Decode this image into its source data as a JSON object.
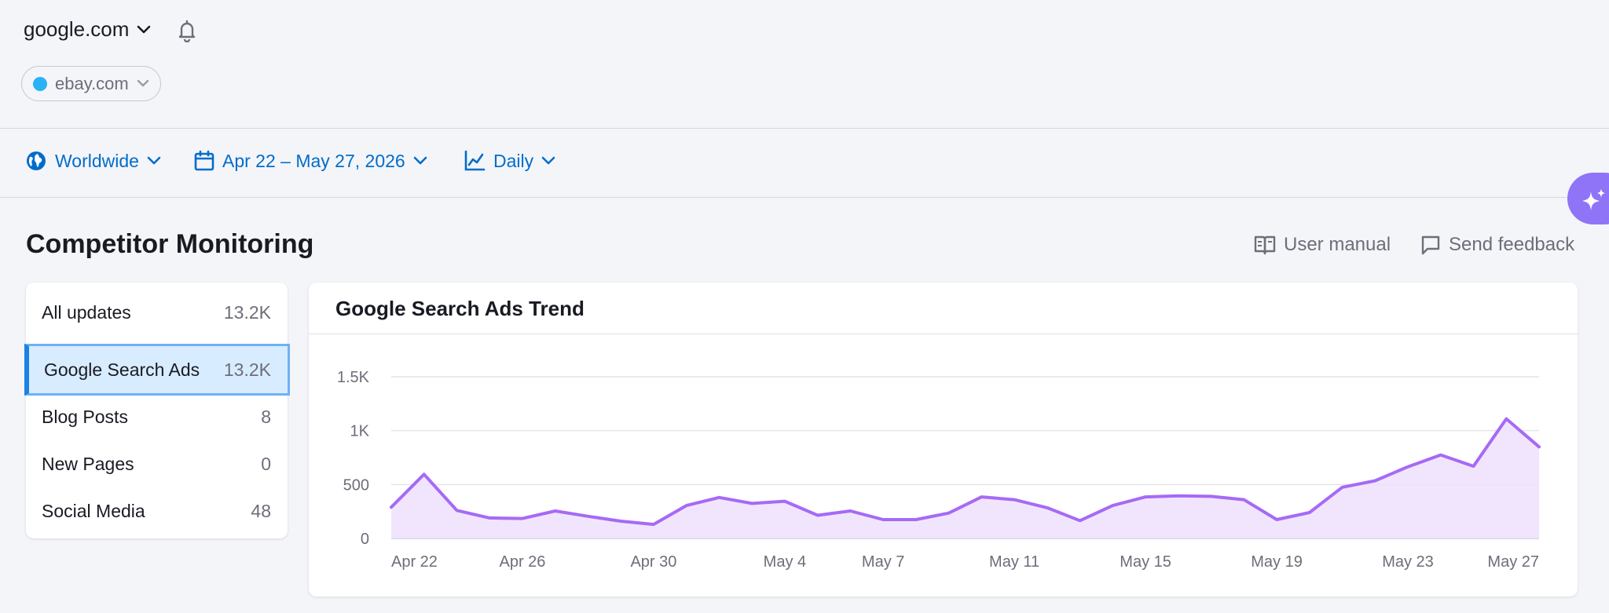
{
  "header": {
    "project": "google.com",
    "competitor": {
      "label": "ebay.com",
      "color": "#2bb1f5"
    }
  },
  "filters": {
    "location": "Worldwide",
    "date_range": "Apr 22 – May 27, 2026",
    "granularity": "Daily"
  },
  "page": {
    "title": "Competitor Monitoring",
    "user_manual": "User manual",
    "send_feedback": "Send feedback"
  },
  "sidebar": {
    "items": [
      {
        "label": "All updates",
        "count": "13.2K"
      },
      {
        "label": "Google Search Ads",
        "count": "13.2K",
        "active": true
      },
      {
        "label": "Blog Posts",
        "count": "8"
      },
      {
        "label": "New Pages",
        "count": "0"
      },
      {
        "label": "Social Media",
        "count": "48"
      }
    ]
  },
  "colors": {
    "accent": "#006dca",
    "line": "#a66af5",
    "fill": "#efe1fd",
    "ai_button": "#8f74f8"
  },
  "chart_data": {
    "type": "area",
    "title": "Google Search Ads Trend",
    "xlabel": "",
    "ylabel": "",
    "ylim": [
      0,
      1500
    ],
    "yticks": [
      0,
      500,
      1000,
      1500
    ],
    "ytick_labels": [
      "0",
      "500",
      "1K",
      "1.5K"
    ],
    "grid": true,
    "x": [
      "Apr 22",
      "Apr 23",
      "Apr 24",
      "Apr 25",
      "Apr 26",
      "Apr 27",
      "Apr 28",
      "Apr 29",
      "Apr 30",
      "May 1",
      "May 2",
      "May 3",
      "May 4",
      "May 5",
      "May 6",
      "May 7",
      "May 8",
      "May 9",
      "May 10",
      "May 11",
      "May 12",
      "May 13",
      "May 14",
      "May 15",
      "May 16",
      "May 17",
      "May 18",
      "May 19",
      "May 20",
      "May 21",
      "May 22",
      "May 23",
      "May 24",
      "May 25",
      "May 26",
      "May 27"
    ],
    "xtick_labels": [
      "Apr 22",
      "Apr 26",
      "Apr 30",
      "May 4",
      "May 7",
      "May 11",
      "May 15",
      "May 19",
      "May 23",
      "May 27"
    ],
    "series": [
      {
        "values": [
          290,
          595,
          260,
          190,
          185,
          255,
          205,
          160,
          130,
          305,
          380,
          325,
          345,
          215,
          255,
          175,
          175,
          235,
          385,
          360,
          285,
          165,
          305,
          385,
          395,
          390,
          360,
          175,
          240,
          475,
          535,
          665,
          775,
          670,
          1110,
          850
        ]
      }
    ]
  }
}
